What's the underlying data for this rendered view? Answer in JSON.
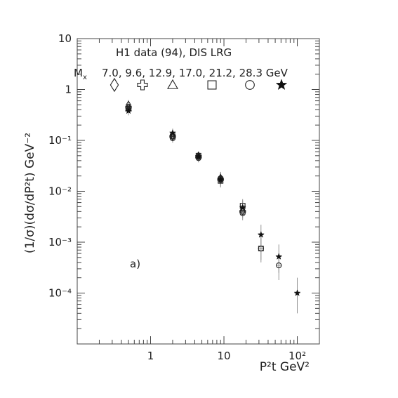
{
  "chart_data": {
    "type": "scatter",
    "title": "H1 data (94), DIS LRG",
    "mx_label": "M",
    "mx_label_sub": "x",
    "mx_values_text": "7.0, 9.6, 12.9, 17.0, 21.2, 28.3 GeV",
    "panel_label": "a)",
    "ylabel": "(1/σ)(dσ/dP²t) GeV⁻²",
    "xlabel": "P²t GeV²",
    "x_scale": "log",
    "y_scale": "log",
    "xlim": [
      0.1,
      200
    ],
    "ylim": [
      1e-05,
      10
    ],
    "x_ticks": [
      {
        "value": 1,
        "label": "1"
      },
      {
        "value": 10,
        "label": "10"
      },
      {
        "value": 100,
        "label": "10²"
      }
    ],
    "y_ticks": [
      {
        "value": 10,
        "label": "10"
      },
      {
        "value": 1,
        "label": "1"
      },
      {
        "value": 0.1,
        "label": "10⁻¹"
      },
      {
        "value": 0.01,
        "label": "10⁻²"
      },
      {
        "value": 0.001,
        "label": "10⁻³"
      },
      {
        "value": 0.0001,
        "label": "10⁻⁴"
      }
    ],
    "grid": false,
    "series": [
      {
        "marker": "diamond",
        "points": [
          {
            "x": 0.5,
            "y": 0.5,
            "lo": 0.4,
            "hi": 0.62
          },
          {
            "x": 2.0,
            "y": 0.12,
            "lo": 0.1,
            "hi": 0.14
          },
          {
            "x": 4.5,
            "y": 0.05,
            "lo": 0.042,
            "hi": 0.058
          },
          {
            "x": 9.0,
            "y": 0.018,
            "lo": 0.014,
            "hi": 0.022
          }
        ]
      },
      {
        "marker": "cross",
        "points": [
          {
            "x": 0.5,
            "y": 0.45,
            "lo": 0.37,
            "hi": 0.55
          },
          {
            "x": 2.0,
            "y": 0.12,
            "lo": 0.1,
            "hi": 0.145
          },
          {
            "x": 4.5,
            "y": 0.048,
            "lo": 0.04,
            "hi": 0.057
          },
          {
            "x": 9.0,
            "y": 0.017,
            "lo": 0.013,
            "hi": 0.022
          },
          {
            "x": 18.0,
            "y": 0.004,
            "lo": 0.003,
            "hi": 0.0055
          }
        ]
      },
      {
        "marker": "triangle",
        "points": [
          {
            "x": 0.5,
            "y": 0.42,
            "lo": 0.35,
            "hi": 0.5
          },
          {
            "x": 2.0,
            "y": 0.13,
            "lo": 0.11,
            "hi": 0.155
          },
          {
            "x": 4.5,
            "y": 0.05,
            "lo": 0.041,
            "hi": 0.06
          },
          {
            "x": 9.0,
            "y": 0.019,
            "lo": 0.015,
            "hi": 0.024
          },
          {
            "x": 18.0,
            "y": 0.0045,
            "lo": 0.0034,
            "hi": 0.006
          }
        ]
      },
      {
        "marker": "square",
        "points": [
          {
            "x": 0.5,
            "y": 0.42,
            "lo": 0.35,
            "hi": 0.5
          },
          {
            "x": 2.0,
            "y": 0.12,
            "lo": 0.1,
            "hi": 0.145
          },
          {
            "x": 4.5,
            "y": 0.05,
            "lo": 0.041,
            "hi": 0.06
          },
          {
            "x": 9.0,
            "y": 0.016,
            "lo": 0.012,
            "hi": 0.021
          },
          {
            "x": 18.0,
            "y": 0.0052,
            "lo": 0.0038,
            "hi": 0.007
          },
          {
            "x": 32.0,
            "y": 0.00075,
            "lo": 0.0004,
            "hi": 0.0013
          }
        ]
      },
      {
        "marker": "circle",
        "points": [
          {
            "x": 0.5,
            "y": 0.42,
            "lo": 0.34,
            "hi": 0.52
          },
          {
            "x": 2.0,
            "y": 0.11,
            "lo": 0.09,
            "hi": 0.135
          },
          {
            "x": 4.5,
            "y": 0.045,
            "lo": 0.037,
            "hi": 0.055
          },
          {
            "x": 9.0,
            "y": 0.018,
            "lo": 0.013,
            "hi": 0.024
          },
          {
            "x": 18.0,
            "y": 0.0037,
            "lo": 0.0027,
            "hi": 0.005
          },
          {
            "x": 32.0,
            "y": 0.00075,
            "lo": 0.00045,
            "hi": 0.0012
          },
          {
            "x": 56.0,
            "y": 0.00035,
            "lo": 0.00018,
            "hi": 0.0006
          }
        ]
      },
      {
        "marker": "star",
        "points": [
          {
            "x": 0.5,
            "y": 0.38,
            "lo": 0.31,
            "hi": 0.46
          },
          {
            "x": 2.0,
            "y": 0.14,
            "lo": 0.115,
            "hi": 0.17
          },
          {
            "x": 4.5,
            "y": 0.048,
            "lo": 0.039,
            "hi": 0.058
          },
          {
            "x": 9.0,
            "y": 0.017,
            "lo": 0.012,
            "hi": 0.023
          },
          {
            "x": 18.0,
            "y": 0.0048,
            "lo": 0.0034,
            "hi": 0.0066
          },
          {
            "x": 32.0,
            "y": 0.0014,
            "lo": 0.0008,
            "hi": 0.0022
          },
          {
            "x": 56.0,
            "y": 0.00052,
            "lo": 0.00025,
            "hi": 0.0009
          },
          {
            "x": 100.0,
            "y": 0.0001,
            "lo": 4e-05,
            "hi": 0.0002
          }
        ]
      }
    ]
  }
}
